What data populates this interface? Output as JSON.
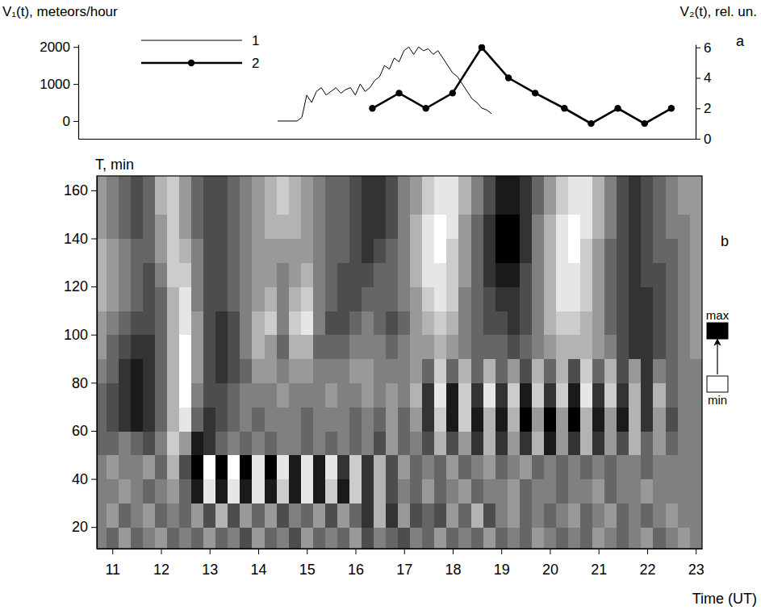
{
  "chart_data": [
    {
      "type": "line",
      "panel": "a",
      "y_label": "V₁(t), meteors/hour",
      "y2_label": "V₂(t), rel. un.",
      "xlim": [
        10.3,
        23.0
      ],
      "ylim": [
        -480,
        2070
      ],
      "yticks": [
        0,
        1000,
        2000
      ],
      "y2lim": [
        0,
        6.2
      ],
      "y2ticks": [
        0,
        2,
        4,
        6
      ],
      "tick_labels": "y",
      "legend": "upper left",
      "series": [
        {
          "name": "1",
          "color": "#000000",
          "line_style": "solid",
          "marker": "none",
          "x": [
            14.4,
            14.5,
            14.6,
            14.7,
            14.8,
            14.9,
            15.0,
            15.1,
            15.2,
            15.3,
            15.4,
            15.5,
            15.6,
            15.7,
            15.8,
            15.9,
            16.0,
            16.1,
            16.2,
            16.3,
            16.4,
            16.5,
            16.6,
            16.7,
            16.8,
            16.9,
            17.0,
            17.1,
            17.2,
            17.3,
            17.4,
            17.5,
            17.6,
            17.7,
            17.8,
            17.9,
            18.0,
            18.1,
            18.2,
            18.3,
            18.4,
            18.5,
            18.6,
            18.7,
            18.8
          ],
          "values": [
            0,
            0,
            0,
            0,
            0,
            100,
            700,
            500,
            800,
            900,
            700,
            800,
            900,
            750,
            850,
            900,
            700,
            1000,
            800,
            900,
            1100,
            1200,
            1500,
            1400,
            1700,
            1600,
            1900,
            2000,
            1800,
            2000,
            1900,
            1950,
            1800,
            1900,
            1700,
            1500,
            1300,
            1200,
            1000,
            800,
            600,
            500,
            350,
            300,
            200
          ]
        },
        {
          "name": "2",
          "color": "#000000",
          "line_style": "solid",
          "marker": "circle",
          "axis": "y2",
          "x": [
            16.35,
            16.9,
            17.45,
            18.0,
            18.6,
            19.15,
            19.7,
            20.3,
            20.85,
            21.4,
            21.95,
            22.5
          ],
          "values": [
            2,
            3,
            2,
            3,
            6,
            4,
            3,
            2,
            1,
            2,
            1,
            2
          ]
        }
      ]
    },
    {
      "type": "heatmap",
      "panel": "b",
      "x_label": "Time (UT)",
      "y_label": "T, min",
      "xlim": [
        10.68,
        23.13
      ],
      "ylim": [
        11,
        166
      ],
      "xticks": [
        11,
        12,
        13,
        14,
        15,
        16,
        17,
        18,
        19,
        20,
        21,
        22,
        23
      ],
      "yticks": [
        20,
        40,
        60,
        80,
        100,
        120,
        140,
        160
      ],
      "x": [
        10.75,
        11,
        11.25,
        11.5,
        11.75,
        12,
        12.25,
        12.5,
        12.75,
        13,
        13.25,
        13.5,
        13.75,
        14,
        14.25,
        14.5,
        14.75,
        15,
        15.25,
        15.5,
        15.75,
        16,
        16.25,
        16.5,
        16.75,
        17,
        17.25,
        17.5,
        17.75,
        18,
        18.25,
        18.5,
        18.75,
        19,
        19.25,
        19.5,
        19.75,
        20,
        20.25,
        20.5,
        20.75,
        21,
        21.25,
        21.5,
        21.75,
        22,
        22.25,
        22.5,
        22.75,
        23
      ],
      "y": [
        15,
        25,
        35,
        45,
        55,
        65,
        75,
        85,
        95,
        105,
        115,
        125,
        135,
        145,
        155,
        165
      ],
      "cells": [
        [
          0.5,
          0.6,
          0.4,
          0.6,
          0.5,
          0.4,
          0.6,
          0.5,
          0.6,
          0.4,
          0.6,
          0.5,
          0.7,
          0.4,
          0.6,
          0.5,
          0.7,
          0.4,
          0.6,
          0.5,
          0.6,
          0.4,
          0.7,
          0.5,
          0.6,
          0.7,
          0.5,
          0.6,
          0.4,
          0.6,
          0.5,
          0.6,
          0.4,
          0.6,
          0.5,
          0.6,
          0.4,
          0.5,
          0.6,
          0.5,
          0.6,
          0.4,
          0.5,
          0.6,
          0.5,
          0.4,
          0.6,
          0.5,
          0.4,
          0.5
        ],
        [
          0.5,
          0.4,
          0.6,
          0.5,
          0.4,
          0.6,
          0.5,
          0.6,
          0.4,
          0.7,
          0.3,
          0.7,
          0.4,
          0.6,
          0.4,
          0.7,
          0.5,
          0.6,
          0.4,
          0.7,
          0.4,
          0.6,
          0.8,
          0.3,
          0.8,
          0.4,
          0.7,
          0.6,
          0.7,
          0.4,
          0.6,
          0.3,
          0.7,
          0.5,
          0.4,
          0.6,
          0.5,
          0.6,
          0.5,
          0.4,
          0.6,
          0.5,
          0.4,
          0.6,
          0.5,
          0.6,
          0.5,
          0.4,
          0.5,
          0.5
        ],
        [
          0.5,
          0.5,
          0.4,
          0.5,
          0.6,
          0.5,
          0.4,
          0.6,
          0.9,
          0.1,
          0.9,
          0.1,
          0.9,
          0.1,
          0.9,
          0.2,
          0.9,
          0.1,
          0.9,
          0.2,
          0.9,
          0.2,
          0.8,
          0.3,
          0.7,
          0.5,
          0.6,
          0.4,
          0.6,
          0.5,
          0.4,
          0.6,
          0.5,
          0.5,
          0.4,
          0.6,
          0.5,
          0.5,
          0.6,
          0.5,
          0.5,
          0.4,
          0.6,
          0.5,
          0.5,
          0.4,
          0.5,
          0.5,
          0.5,
          0.5
        ],
        [
          0.5,
          0.4,
          0.5,
          0.5,
          0.4,
          0.6,
          0.3,
          0.7,
          1.0,
          0.0,
          1.0,
          0.0,
          1.0,
          0.1,
          1.0,
          0.1,
          0.9,
          0.1,
          0.9,
          0.1,
          0.8,
          0.2,
          0.8,
          0.3,
          0.7,
          0.4,
          0.6,
          0.5,
          0.6,
          0.4,
          0.6,
          0.5,
          0.4,
          0.6,
          0.5,
          0.4,
          0.6,
          0.5,
          0.6,
          0.5,
          0.6,
          0.5,
          0.6,
          0.5,
          0.5,
          0.6,
          0.5,
          0.5,
          0.5,
          0.5
        ],
        [
          0.6,
          0.6,
          0.5,
          0.6,
          0.7,
          0.5,
          0.2,
          0.4,
          0.9,
          0.8,
          0.6,
          0.5,
          0.6,
          0.5,
          0.6,
          0.5,
          0.5,
          0.6,
          0.5,
          0.6,
          0.5,
          0.6,
          0.5,
          0.7,
          0.4,
          0.6,
          0.5,
          0.7,
          0.3,
          0.7,
          0.4,
          0.8,
          0.3,
          0.8,
          0.4,
          0.8,
          0.3,
          0.9,
          0.4,
          0.8,
          0.3,
          0.8,
          0.4,
          0.7,
          0.3,
          0.6,
          0.4,
          0.6,
          0.5,
          0.5
        ],
        [
          0.6,
          0.7,
          0.8,
          0.9,
          0.8,
          0.6,
          0.3,
          0.1,
          0.6,
          0.8,
          0.7,
          0.6,
          0.5,
          0.6,
          0.5,
          0.5,
          0.5,
          0.6,
          0.5,
          0.5,
          0.5,
          0.6,
          0.5,
          0.6,
          0.4,
          0.6,
          0.4,
          0.8,
          0.2,
          0.9,
          0.2,
          0.9,
          0.3,
          0.9,
          0.3,
          1.0,
          0.4,
          1.0,
          0.4,
          1.0,
          0.3,
          0.9,
          0.4,
          0.9,
          0.3,
          0.8,
          0.4,
          0.7,
          0.5,
          0.5
        ],
        [
          0.6,
          0.7,
          0.8,
          0.9,
          0.8,
          0.6,
          0.3,
          0.0,
          0.5,
          0.7,
          0.7,
          0.6,
          0.5,
          0.5,
          0.5,
          0.4,
          0.5,
          0.5,
          0.5,
          0.4,
          0.5,
          0.5,
          0.4,
          0.5,
          0.4,
          0.5,
          0.3,
          0.8,
          0.1,
          0.9,
          0.2,
          0.8,
          0.1,
          0.8,
          0.2,
          0.9,
          0.2,
          0.8,
          0.2,
          0.9,
          0.1,
          0.8,
          0.2,
          0.8,
          0.3,
          0.8,
          0.3,
          0.6,
          0.5,
          0.5
        ],
        [
          0.5,
          0.6,
          0.8,
          0.9,
          0.8,
          0.6,
          0.3,
          0.0,
          0.4,
          0.7,
          0.8,
          0.7,
          0.6,
          0.4,
          0.4,
          0.5,
          0.4,
          0.4,
          0.5,
          0.5,
          0.5,
          0.4,
          0.4,
          0.5,
          0.5,
          0.5,
          0.4,
          0.6,
          0.2,
          0.6,
          0.3,
          0.6,
          0.3,
          0.6,
          0.4,
          0.7,
          0.3,
          0.6,
          0.3,
          0.7,
          0.2,
          0.6,
          0.3,
          0.7,
          0.4,
          0.8,
          0.5,
          0.6,
          0.5,
          0.5
        ],
        [
          0.4,
          0.6,
          0.7,
          0.8,
          0.8,
          0.6,
          0.3,
          0.0,
          0.4,
          0.7,
          0.8,
          0.7,
          0.5,
          0.3,
          0.4,
          0.6,
          0.3,
          0.3,
          0.6,
          0.6,
          0.6,
          0.5,
          0.5,
          0.5,
          0.6,
          0.5,
          0.4,
          0.4,
          0.3,
          0.4,
          0.5,
          0.6,
          0.6,
          0.6,
          0.7,
          0.6,
          0.5,
          0.4,
          0.3,
          0.3,
          0.3,
          0.4,
          0.5,
          0.7,
          0.8,
          0.8,
          0.7,
          0.6,
          0.5,
          0.4
        ],
        [
          0.4,
          0.5,
          0.6,
          0.7,
          0.7,
          0.6,
          0.3,
          0.1,
          0.4,
          0.7,
          0.8,
          0.7,
          0.5,
          0.3,
          0.2,
          0.5,
          0.2,
          0.1,
          0.5,
          0.7,
          0.7,
          0.6,
          0.5,
          0.6,
          0.7,
          0.6,
          0.4,
          0.3,
          0.2,
          0.3,
          0.5,
          0.6,
          0.7,
          0.7,
          0.8,
          0.7,
          0.5,
          0.3,
          0.2,
          0.2,
          0.3,
          0.4,
          0.6,
          0.7,
          0.8,
          0.8,
          0.7,
          0.6,
          0.5,
          0.4
        ],
        [
          0.3,
          0.4,
          0.5,
          0.6,
          0.7,
          0.6,
          0.3,
          0.1,
          0.5,
          0.7,
          0.7,
          0.6,
          0.5,
          0.4,
          0.3,
          0.5,
          0.3,
          0.2,
          0.5,
          0.6,
          0.7,
          0.7,
          0.6,
          0.6,
          0.6,
          0.5,
          0.4,
          0.2,
          0.1,
          0.2,
          0.5,
          0.6,
          0.7,
          0.8,
          0.8,
          0.7,
          0.5,
          0.3,
          0.1,
          0.1,
          0.2,
          0.4,
          0.6,
          0.7,
          0.8,
          0.8,
          0.7,
          0.6,
          0.5,
          0.4
        ],
        [
          0.3,
          0.4,
          0.5,
          0.6,
          0.7,
          0.5,
          0.2,
          0.2,
          0.5,
          0.7,
          0.7,
          0.6,
          0.5,
          0.4,
          0.4,
          0.5,
          0.4,
          0.3,
          0.5,
          0.6,
          0.7,
          0.7,
          0.7,
          0.6,
          0.6,
          0.5,
          0.3,
          0.1,
          0.1,
          0.2,
          0.4,
          0.6,
          0.8,
          0.9,
          0.9,
          0.7,
          0.5,
          0.3,
          0.1,
          0.1,
          0.2,
          0.4,
          0.6,
          0.7,
          0.8,
          0.7,
          0.7,
          0.6,
          0.5,
          0.4
        ],
        [
          0.3,
          0.4,
          0.5,
          0.6,
          0.6,
          0.4,
          0.2,
          0.3,
          0.5,
          0.7,
          0.7,
          0.6,
          0.5,
          0.4,
          0.4,
          0.4,
          0.4,
          0.4,
          0.5,
          0.6,
          0.6,
          0.7,
          0.8,
          0.7,
          0.6,
          0.5,
          0.3,
          0.1,
          0.0,
          0.2,
          0.4,
          0.6,
          0.8,
          1.0,
          1.0,
          0.8,
          0.5,
          0.3,
          0.1,
          0.0,
          0.2,
          0.4,
          0.6,
          0.7,
          0.8,
          0.7,
          0.6,
          0.6,
          0.5,
          0.4
        ],
        [
          0.4,
          0.5,
          0.6,
          0.7,
          0.6,
          0.4,
          0.2,
          0.4,
          0.6,
          0.7,
          0.7,
          0.6,
          0.5,
          0.4,
          0.3,
          0.3,
          0.3,
          0.4,
          0.5,
          0.6,
          0.6,
          0.7,
          0.8,
          0.8,
          0.7,
          0.5,
          0.3,
          0.1,
          0.0,
          0.1,
          0.4,
          0.6,
          0.8,
          1.0,
          1.0,
          0.8,
          0.5,
          0.3,
          0.1,
          0.0,
          0.1,
          0.3,
          0.5,
          0.7,
          0.8,
          0.7,
          0.6,
          0.5,
          0.5,
          0.4
        ],
        [
          0.4,
          0.5,
          0.6,
          0.7,
          0.6,
          0.3,
          0.2,
          0.4,
          0.6,
          0.7,
          0.7,
          0.6,
          0.5,
          0.4,
          0.3,
          0.2,
          0.3,
          0.4,
          0.5,
          0.6,
          0.6,
          0.7,
          0.8,
          0.8,
          0.7,
          0.5,
          0.4,
          0.2,
          0.1,
          0.1,
          0.3,
          0.5,
          0.7,
          0.9,
          0.9,
          0.8,
          0.6,
          0.4,
          0.2,
          0.1,
          0.1,
          0.3,
          0.5,
          0.7,
          0.8,
          0.7,
          0.6,
          0.5,
          0.4,
          0.4
        ],
        [
          0.4,
          0.5,
          0.6,
          0.7,
          0.6,
          0.3,
          0.2,
          0.4,
          0.6,
          0.7,
          0.7,
          0.6,
          0.5,
          0.4,
          0.3,
          0.2,
          0.3,
          0.4,
          0.5,
          0.6,
          0.6,
          0.7,
          0.8,
          0.8,
          0.7,
          0.5,
          0.4,
          0.2,
          0.1,
          0.1,
          0.3,
          0.5,
          0.7,
          0.9,
          0.9,
          0.8,
          0.6,
          0.4,
          0.2,
          0.1,
          0.1,
          0.3,
          0.5,
          0.7,
          0.8,
          0.7,
          0.6,
          0.5,
          0.4,
          0.4
        ]
      ],
      "colorbar": {
        "range": [
          0,
          1
        ],
        "ticks": [
          {
            "value": 1,
            "label": "max"
          },
          {
            "value": 0,
            "label": "min"
          }
        ]
      }
    }
  ]
}
